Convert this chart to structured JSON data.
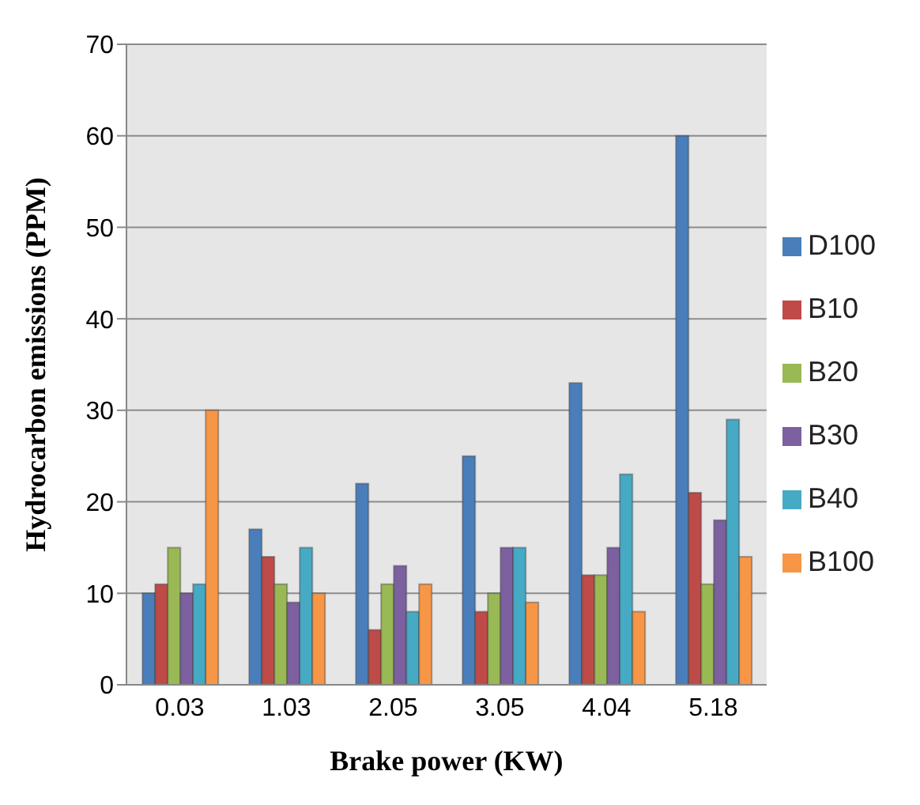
{
  "chart_data": {
    "type": "bar",
    "xlabel": "Brake power (KW)",
    "ylabel": "Hydrocarbon emissions (PPM)",
    "categories": [
      "0.03",
      "1.03",
      "2.05",
      "3.05",
      "4.04",
      "5.18"
    ],
    "series": [
      {
        "name": "D100",
        "color": "#4a7ebb",
        "values": [
          10,
          17,
          22,
          25,
          33,
          60
        ]
      },
      {
        "name": "B10",
        "color": "#be4b48",
        "values": [
          11,
          14,
          6,
          8,
          12,
          21
        ]
      },
      {
        "name": "B20",
        "color": "#98b954",
        "values": [
          15,
          11,
          11,
          10,
          12,
          11
        ]
      },
      {
        "name": "B30",
        "color": "#7d60a0",
        "values": [
          10,
          9,
          13,
          15,
          15,
          18
        ]
      },
      {
        "name": "B40",
        "color": "#46aac5",
        "values": [
          11,
          15,
          8,
          15,
          23,
          29
        ]
      },
      {
        "name": "B100",
        "color": "#f79646",
        "values": [
          30,
          10,
          11,
          9,
          8,
          14
        ]
      }
    ],
    "ylim": [
      0,
      70
    ],
    "yticks": [
      0,
      10,
      20,
      30,
      40,
      50,
      60,
      70
    ],
    "grid": "y",
    "legend": "right"
  }
}
